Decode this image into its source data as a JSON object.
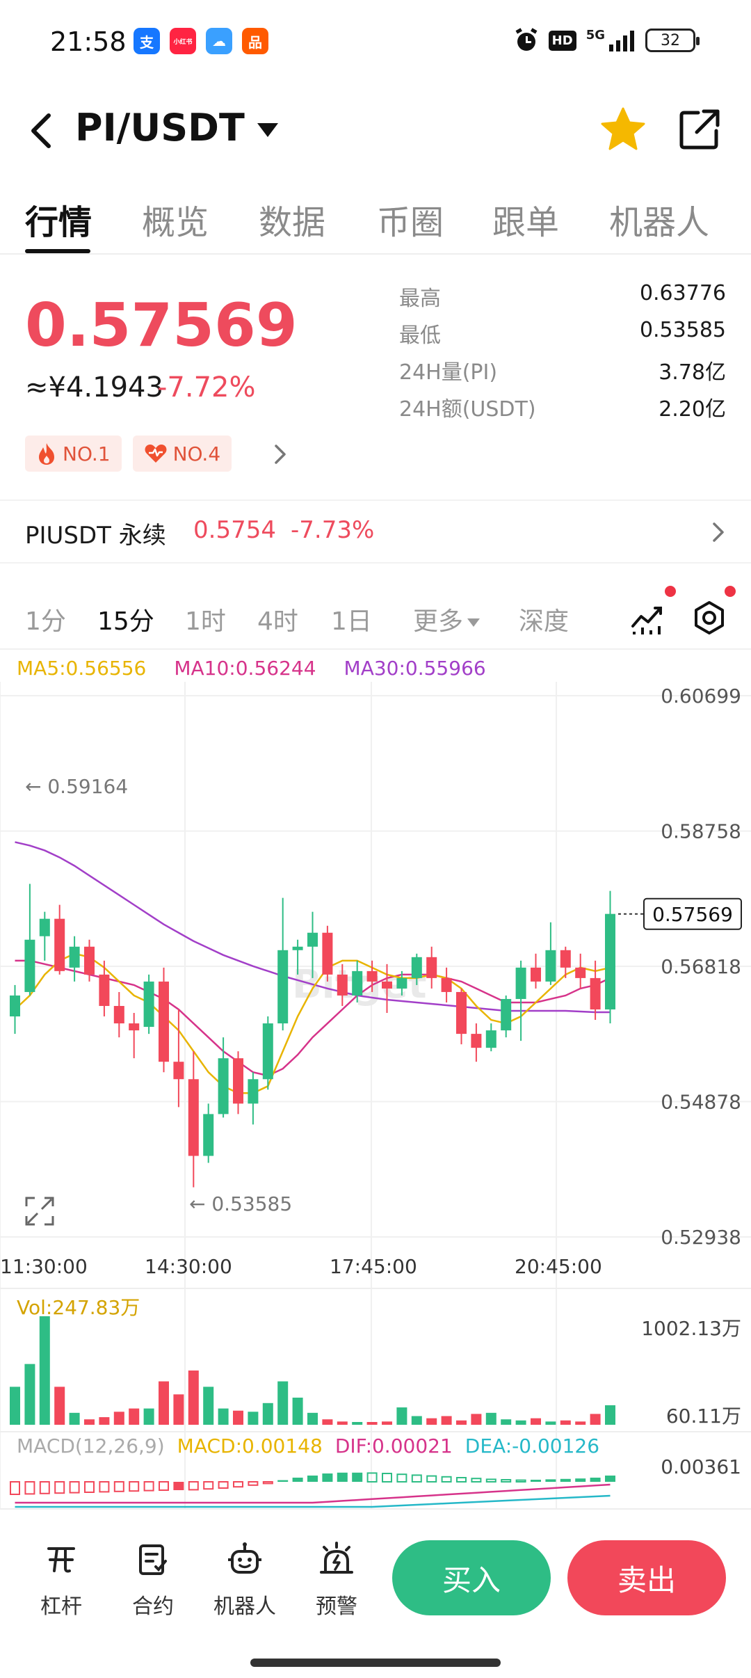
{
  "status_bar": {
    "time": "21:58",
    "apps": [
      {
        "name": "alipay-icon",
        "glyph": "支",
        "color": "#1677ff"
      },
      {
        "name": "xiaohongshu-icon",
        "glyph": "小红书",
        "color": "#ff2442"
      },
      {
        "name": "weather-icon",
        "glyph": "☁",
        "color": "#3aa0ff"
      },
      {
        "name": "taobao-icon",
        "glyph": "品",
        "color": "#ff5a00"
      }
    ],
    "hd": "HD",
    "network": "5G",
    "battery": "32"
  },
  "header": {
    "pair": "PI/USDT"
  },
  "tabs": [
    "行情",
    "概览",
    "数据",
    "币圈",
    "跟单",
    "机器人"
  ],
  "price": {
    "last": "0.57569",
    "cny": "≈¥4.1943",
    "change": "-7.72%"
  },
  "stats": [
    {
      "label": "最高",
      "value": "0.63776"
    },
    {
      "label": "最低",
      "value": "0.53585"
    },
    {
      "label": "24H量(PI)",
      "value": "3.78亿"
    },
    {
      "label": "24H额(USDT)",
      "value": "2.20亿"
    }
  ],
  "badges": [
    {
      "text": "NO.1",
      "icon": "flame-icon"
    },
    {
      "text": "NO.4",
      "icon": "heart-icon"
    }
  ],
  "contract": {
    "name": "PIUSDT 永续",
    "price": "0.5754",
    "change": "-7.73%"
  },
  "intervals": [
    "1分",
    "15分",
    "1时",
    "4时",
    "1日",
    "更多",
    "深度"
  ],
  "ma": {
    "ma5": "MA5:0.56556",
    "ma10": "MA10:0.56244",
    "ma30": "MA30:0.55966",
    "ma5_color": "#e8b400",
    "ma10_color": "#d6338a",
    "ma30_color": "#a23fc8"
  },
  "colors": {
    "up": "#2ebd85",
    "down": "#f2485a"
  },
  "chart_data": {
    "type": "candlestick",
    "y_ticks": [
      "0.60699",
      "0.58758",
      "0.56818",
      "0.54878",
      "0.52938"
    ],
    "ylim": [
      0.52938,
      0.60699
    ],
    "x_ticks": [
      "11:30:00",
      "14:30:00",
      "17:45:00",
      "20:45:00"
    ],
    "last_price": "0.57569",
    "high_label": "← 0.59164",
    "low_label": "← 0.53585",
    "watermark": "Bitget",
    "candles": [
      {
        "o": 0.561,
        "h": 0.5655,
        "l": 0.5585,
        "c": 0.564
      },
      {
        "o": 0.5645,
        "h": 0.58,
        "l": 0.564,
        "c": 0.572
      },
      {
        "o": 0.5725,
        "h": 0.576,
        "l": 0.569,
        "c": 0.575
      },
      {
        "o": 0.575,
        "h": 0.577,
        "l": 0.567,
        "c": 0.5675
      },
      {
        "o": 0.568,
        "h": 0.5725,
        "l": 0.566,
        "c": 0.571
      },
      {
        "o": 0.571,
        "h": 0.572,
        "l": 0.566,
        "c": 0.567
      },
      {
        "o": 0.567,
        "h": 0.569,
        "l": 0.561,
        "c": 0.5625
      },
      {
        "o": 0.5625,
        "h": 0.5645,
        "l": 0.558,
        "c": 0.56
      },
      {
        "o": 0.56,
        "h": 0.5615,
        "l": 0.555,
        "c": 0.559
      },
      {
        "o": 0.5595,
        "h": 0.567,
        "l": 0.5585,
        "c": 0.566
      },
      {
        "o": 0.566,
        "h": 0.568,
        "l": 0.553,
        "c": 0.5545
      },
      {
        "o": 0.5545,
        "h": 0.562,
        "l": 0.548,
        "c": 0.552
      },
      {
        "o": 0.552,
        "h": 0.556,
        "l": 0.5365,
        "c": 0.541
      },
      {
        "o": 0.541,
        "h": 0.5485,
        "l": 0.54,
        "c": 0.547
      },
      {
        "o": 0.547,
        "h": 0.558,
        "l": 0.5465,
        "c": 0.555
      },
      {
        "o": 0.555,
        "h": 0.556,
        "l": 0.547,
        "c": 0.5485
      },
      {
        "o": 0.5485,
        "h": 0.553,
        "l": 0.5455,
        "c": 0.552
      },
      {
        "o": 0.552,
        "h": 0.561,
        "l": 0.5505,
        "c": 0.56
      },
      {
        "o": 0.56,
        "h": 0.578,
        "l": 0.559,
        "c": 0.5705
      },
      {
        "o": 0.5705,
        "h": 0.572,
        "l": 0.567,
        "c": 0.571
      },
      {
        "o": 0.571,
        "h": 0.576,
        "l": 0.5665,
        "c": 0.573
      },
      {
        "o": 0.573,
        "h": 0.574,
        "l": 0.566,
        "c": 0.567
      },
      {
        "o": 0.567,
        "h": 0.5685,
        "l": 0.5625,
        "c": 0.564
      },
      {
        "o": 0.564,
        "h": 0.569,
        "l": 0.563,
        "c": 0.5675
      },
      {
        "o": 0.5675,
        "h": 0.569,
        "l": 0.5645,
        "c": 0.566
      },
      {
        "o": 0.566,
        "h": 0.5685,
        "l": 0.5615,
        "c": 0.565
      },
      {
        "o": 0.565,
        "h": 0.5675,
        "l": 0.564,
        "c": 0.5665
      },
      {
        "o": 0.5665,
        "h": 0.57,
        "l": 0.5655,
        "c": 0.5695
      },
      {
        "o": 0.5695,
        "h": 0.571,
        "l": 0.565,
        "c": 0.5665
      },
      {
        "o": 0.5665,
        "h": 0.568,
        "l": 0.563,
        "c": 0.5645
      },
      {
        "o": 0.5645,
        "h": 0.565,
        "l": 0.557,
        "c": 0.5585
      },
      {
        "o": 0.5585,
        "h": 0.56,
        "l": 0.5545,
        "c": 0.5565
      },
      {
        "o": 0.5565,
        "h": 0.56,
        "l": 0.556,
        "c": 0.559
      },
      {
        "o": 0.559,
        "h": 0.564,
        "l": 0.558,
        "c": 0.5635
      },
      {
        "o": 0.5635,
        "h": 0.569,
        "l": 0.5575,
        "c": 0.568
      },
      {
        "o": 0.568,
        "h": 0.57,
        "l": 0.565,
        "c": 0.566
      },
      {
        "o": 0.566,
        "h": 0.5745,
        "l": 0.5655,
        "c": 0.5705
      },
      {
        "o": 0.5705,
        "h": 0.571,
        "l": 0.5665,
        "c": 0.568
      },
      {
        "o": 0.568,
        "h": 0.57,
        "l": 0.565,
        "c": 0.5665
      },
      {
        "o": 0.5665,
        "h": 0.569,
        "l": 0.5605,
        "c": 0.562
      },
      {
        "o": 0.562,
        "h": 0.579,
        "l": 0.56,
        "c": 0.5757
      }
    ],
    "ma5": [
      0.562,
      0.564,
      0.567,
      0.569,
      0.57,
      0.5695,
      0.568,
      0.566,
      0.564,
      0.563,
      0.561,
      0.559,
      0.556,
      0.553,
      0.551,
      0.55,
      0.55,
      0.551,
      0.556,
      0.561,
      0.565,
      0.568,
      0.569,
      0.569,
      0.568,
      0.567,
      0.5665,
      0.5665,
      0.567,
      0.5665,
      0.565,
      0.5625,
      0.5605,
      0.56,
      0.561,
      0.563,
      0.565,
      0.567,
      0.568,
      0.5675,
      0.568
    ],
    "ma10": [
      0.569,
      0.569,
      0.5685,
      0.568,
      0.5675,
      0.567,
      0.5665,
      0.566,
      0.5655,
      0.5645,
      0.5635,
      0.562,
      0.56,
      0.558,
      0.556,
      0.5545,
      0.553,
      0.5525,
      0.5535,
      0.5555,
      0.558,
      0.56,
      0.562,
      0.564,
      0.5655,
      0.5665,
      0.567,
      0.567,
      0.567,
      0.5665,
      0.566,
      0.565,
      0.564,
      0.563,
      0.563,
      0.563,
      0.5635,
      0.564,
      0.565,
      0.5655,
      0.5665
    ],
    "ma30": [
      0.586,
      0.5855,
      0.5848,
      0.5838,
      0.5826,
      0.5812,
      0.5798,
      0.5784,
      0.577,
      0.5756,
      0.5742,
      0.573,
      0.5718,
      0.5708,
      0.5698,
      0.569,
      0.5682,
      0.5675,
      0.5668,
      0.5662,
      0.5656,
      0.565,
      0.5645,
      0.564,
      0.5637,
      0.5634,
      0.5632,
      0.563,
      0.5628,
      0.5626,
      0.5624,
      0.5622,
      0.562,
      0.5618,
      0.5618,
      0.5618,
      0.5618,
      0.5618,
      0.5617,
      0.5616,
      0.5616
    ],
    "volume": {
      "label": "Vol:247.83万",
      "max_label": "1002.13万",
      "min_label": "60.11万",
      "values": [
        350,
        560,
        1000,
        350,
        110,
        50,
        70,
        120,
        150,
        150,
        400,
        280,
        500,
        350,
        150,
        130,
        120,
        200,
        400,
        250,
        110,
        50,
        30,
        20,
        20,
        30,
        160,
        80,
        60,
        80,
        40,
        100,
        110,
        50,
        40,
        60,
        30,
        40,
        30,
        100,
        180
      ]
    },
    "macd": {
      "legend": "MACD(12,26,9)",
      "macd": "MACD:0.00148",
      "dif": "DIF:0.00021",
      "dea": "DEA:-0.00126",
      "max_label": "0.00361",
      "values": [
        -0.003,
        -0.0029,
        -0.0028,
        -0.0027,
        -0.0026,
        -0.0025,
        -0.0024,
        -0.0023,
        -0.0022,
        -0.0021,
        -0.002,
        -0.002,
        -0.0019,
        -0.0017,
        -0.0015,
        -0.0012,
        -0.0008,
        -0.0004,
        0.0004,
        0.001,
        0.0015,
        0.002,
        0.0022,
        0.0022,
        0.0021,
        0.002,
        0.0018,
        0.0016,
        0.0014,
        0.0012,
        0.001,
        0.0008,
        0.0006,
        0.0005,
        0.0004,
        0.0005,
        0.0006,
        0.0007,
        0.0008,
        0.001,
        0.0015
      ]
    }
  },
  "bottom_nav": [
    {
      "label": "杠杆",
      "icon": "leverage-icon"
    },
    {
      "label": "合约",
      "icon": "contract-icon"
    },
    {
      "label": "机器人",
      "icon": "robot-icon"
    },
    {
      "label": "预警",
      "icon": "alert-icon"
    }
  ],
  "actions": {
    "buy": "买入",
    "sell": "卖出"
  }
}
